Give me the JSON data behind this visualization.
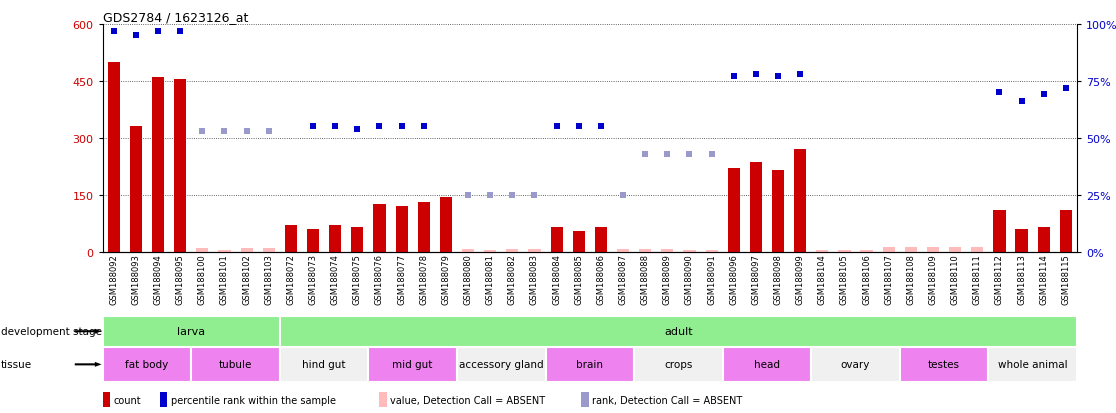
{
  "title": "GDS2784 / 1623126_at",
  "samples": [
    "GSM188092",
    "GSM188093",
    "GSM188094",
    "GSM188095",
    "GSM188100",
    "GSM188101",
    "GSM188102",
    "GSM188103",
    "GSM188072",
    "GSM188073",
    "GSM188074",
    "GSM188075",
    "GSM188076",
    "GSM188077",
    "GSM188078",
    "GSM188079",
    "GSM188080",
    "GSM188081",
    "GSM188082",
    "GSM188083",
    "GSM188084",
    "GSM188085",
    "GSM188086",
    "GSM188087",
    "GSM188088",
    "GSM188089",
    "GSM188090",
    "GSM188091",
    "GSM188096",
    "GSM188097",
    "GSM188098",
    "GSM188099",
    "GSM188104",
    "GSM188105",
    "GSM188106",
    "GSM188107",
    "GSM188108",
    "GSM188109",
    "GSM188110",
    "GSM188111",
    "GSM188112",
    "GSM188113",
    "GSM188114",
    "GSM188115"
  ],
  "counts": [
    500,
    330,
    460,
    455,
    10,
    5,
    10,
    10,
    70,
    60,
    70,
    65,
    125,
    120,
    130,
    145,
    8,
    5,
    8,
    8,
    65,
    55,
    65,
    8,
    8,
    8,
    5,
    5,
    220,
    235,
    215,
    270,
    5,
    5,
    5,
    12,
    12,
    12,
    12,
    12,
    110,
    60,
    65,
    110
  ],
  "absent_bar": [
    false,
    false,
    false,
    false,
    true,
    true,
    true,
    true,
    false,
    false,
    false,
    false,
    false,
    false,
    false,
    false,
    true,
    true,
    true,
    true,
    false,
    false,
    false,
    true,
    true,
    true,
    true,
    true,
    false,
    false,
    false,
    false,
    true,
    true,
    true,
    true,
    true,
    true,
    true,
    true,
    false,
    false,
    false,
    false
  ],
  "pct_ranks": [
    97,
    95,
    97,
    97,
    53,
    53,
    53,
    53,
    null,
    55,
    55,
    54,
    55,
    55,
    55,
    null,
    25,
    25,
    25,
    25,
    55,
    55,
    55,
    25,
    43,
    43,
    43,
    43,
    77,
    78,
    77,
    78,
    null,
    null,
    null,
    null,
    null,
    null,
    null,
    null,
    70,
    66,
    69,
    72
  ],
  "absent_rank": [
    false,
    false,
    false,
    false,
    true,
    true,
    true,
    true,
    false,
    false,
    false,
    false,
    false,
    false,
    false,
    false,
    true,
    true,
    true,
    true,
    false,
    false,
    false,
    true,
    true,
    true,
    true,
    true,
    false,
    false,
    false,
    false,
    true,
    true,
    true,
    true,
    true,
    true,
    true,
    true,
    false,
    false,
    false,
    false
  ],
  "dev_stages": [
    {
      "label": "larva",
      "start": 0,
      "end": 8,
      "color": "#90ee90"
    },
    {
      "label": "adult",
      "start": 8,
      "end": 44,
      "color": "#90ee90"
    }
  ],
  "tissues": [
    {
      "label": "fat body",
      "start": 0,
      "end": 4,
      "color": "#ee82ee"
    },
    {
      "label": "tubule",
      "start": 4,
      "end": 8,
      "color": "#ee82ee"
    },
    {
      "label": "hind gut",
      "start": 8,
      "end": 12,
      "color": "#f0f0f0"
    },
    {
      "label": "mid gut",
      "start": 12,
      "end": 16,
      "color": "#ee82ee"
    },
    {
      "label": "accessory gland",
      "start": 16,
      "end": 20,
      "color": "#f0f0f0"
    },
    {
      "label": "brain",
      "start": 20,
      "end": 24,
      "color": "#ee82ee"
    },
    {
      "label": "crops",
      "start": 24,
      "end": 28,
      "color": "#f0f0f0"
    },
    {
      "label": "head",
      "start": 28,
      "end": 32,
      "color": "#ee82ee"
    },
    {
      "label": "ovary",
      "start": 32,
      "end": 36,
      "color": "#f0f0f0"
    },
    {
      "label": "testes",
      "start": 36,
      "end": 40,
      "color": "#ee82ee"
    },
    {
      "label": "whole animal",
      "start": 40,
      "end": 44,
      "color": "#f0f0f0"
    }
  ],
  "left_ylim": [
    0,
    600
  ],
  "left_yticks": [
    0,
    150,
    300,
    450,
    600
  ],
  "right_ylim": [
    0,
    100
  ],
  "right_yticks": [
    0,
    25,
    50,
    75,
    100
  ],
  "bar_color": "#cc0000",
  "absent_bar_color": "#ffbbbb",
  "dot_color": "#0000cc",
  "absent_dot_color": "#9999cc",
  "bar_width": 0.55,
  "bg_color": "#ffffff",
  "grid_color": "#333333",
  "sample_fontsize": 6.0,
  "legend_items": [
    {
      "color": "#cc0000",
      "label": "count"
    },
    {
      "color": "#0000cc",
      "label": "percentile rank within the sample"
    },
    {
      "color": "#ffbbbb",
      "label": "value, Detection Call = ABSENT"
    },
    {
      "color": "#9999cc",
      "label": "rank, Detection Call = ABSENT"
    }
  ]
}
